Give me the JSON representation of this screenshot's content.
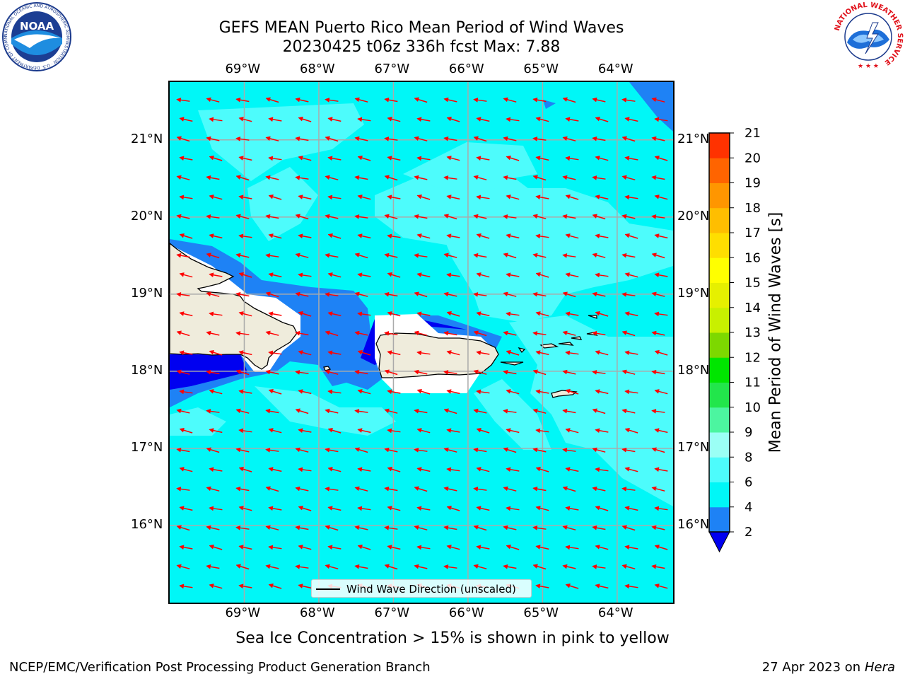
{
  "title": {
    "line1": "GEFS MEAN Puerto Rico Mean Period of Wind Waves",
    "line2": "20230425 t06z 336h fcst   Max: 7.88"
  },
  "map": {
    "lon_ticks": [
      "69°W",
      "68°W",
      "67°W",
      "66°W",
      "65°W",
      "64°W"
    ],
    "lat_ticks": [
      "21°N",
      "20°N",
      "19°N",
      "18°N",
      "17°N",
      "16°N"
    ],
    "lon_range": [
      -70.0,
      -63.25
    ],
    "lat_range": [
      15.0,
      21.75
    ],
    "colors": {
      "ocean_period_4_6": "#00f7f7",
      "ocean_period_6_8": "#4dfcfc",
      "ocean_period_2_4": "#1e82f5",
      "ocean_period_below_2": "#0000f0",
      "land": "#efecdc",
      "arrows": "#ff0000",
      "gridlines": "#aaaaaa"
    }
  },
  "colorbar": {
    "label": "Mean Period of Wind Waves [s]",
    "ticks": [
      "2",
      "4",
      "6",
      "8",
      "9",
      "10",
      "11",
      "12",
      "13",
      "14",
      "15",
      "16",
      "17",
      "18",
      "19",
      "20",
      "21"
    ],
    "colors": [
      "#1e82f5",
      "#00f7f7",
      "#4dfcfc",
      "#9bfff5",
      "#4cf5a0",
      "#22e64b",
      "#00e600",
      "#7dd800",
      "#c8f000",
      "#e6f000",
      "#ffff00",
      "#ffde00",
      "#ffbe00",
      "#ff9600",
      "#ff6400",
      "#ff3200",
      "#ff0000"
    ],
    "under_color": "#0000f0"
  },
  "legend": {
    "label": "Wind Wave Direction (unscaled)"
  },
  "footnote": "Sea Ice Concentration > 15% is shown in pink to yellow",
  "footer": {
    "left": "NCEP/EMC/Verification Post Processing Product Generation Branch",
    "right_date": "27 Apr 2023 on ",
    "right_host": "Hera"
  },
  "logos": {
    "noaa_text": "NOAA",
    "noaa_ring": "NATIONAL OCEANIC AND ATMOSPHERIC ADMINISTRATION · U.S. DEPARTMENT OF COMMERCE ·",
    "nws_ring": "NATIONAL WEATHER SERVICE"
  }
}
